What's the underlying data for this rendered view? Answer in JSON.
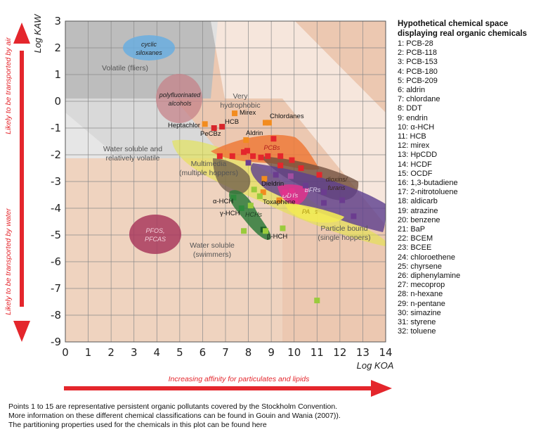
{
  "chart_data": {
    "type": "scatter",
    "title": "",
    "xlabel": "Log KOA",
    "ylabel": "Log KAW",
    "xlim": [
      0,
      14
    ],
    "ylim": [
      -9,
      3
    ],
    "xticks": [
      "0",
      "1",
      "2",
      "3",
      "4",
      "5",
      "6",
      "7",
      "8",
      "9",
      "10",
      "11",
      "12",
      "13",
      "14"
    ],
    "yticks": [
      "3",
      "2",
      "1",
      "0",
      "-1",
      "-2",
      "-3",
      "-4",
      "-5",
      "-6",
      "-7",
      "-8",
      "-9"
    ],
    "grid": true,
    "side_arrow_top": "Likely to be transported by air",
    "side_arrow_bottom": "Likely to be transported by water",
    "bottom_arrow": "Increasing affinity for particulates and lipids",
    "region_labels": {
      "volatile": "Volatile (fliers)",
      "very_hydrophobic_1": "Very",
      "very_hydrophobic_2": "hydrophobic",
      "water_soluble_volatile_1": "Water soluble and",
      "water_soluble_volatile_2": "relatively volatile",
      "multimedia_1": "Multimedia",
      "multimedia_2": "(multiple hoppers)",
      "particle_bound_1": "Particle bound",
      "particle_bound_2": "(single hoppers)",
      "water_soluble_1": "Water soluble",
      "water_soluble_2": "(swimmers)"
    },
    "blob_labels": {
      "siloxanes_1": "cyclic",
      "siloxanes_2": "siloxanes",
      "pfa_1": "polyfluorinated",
      "pfa_2": "alcohols",
      "pfos_1": "PFOS,",
      "pfos_2": "PFCAS",
      "pcbs": "PCBs",
      "dioxins_1": "dioxins/",
      "dioxins_2": "furans",
      "bfrs": "BFRs",
      "ddts": "DDTs",
      "pahs": "PAHs",
      "hchs": "HCHs"
    },
    "chemical_labels": {
      "heptachlor": "Heptachlor",
      "pecbz": "PeCBz",
      "hcb": "HCB",
      "mirex": "Mirex",
      "chlordanes": "Chlordanes",
      "aldrin": "Aldrin",
      "dieldrin": "Dieldrin",
      "toxaphene": "Toxaphene",
      "a_hch": "α-HCH",
      "g_hch": "γ-HCH",
      "b_hch": "β-HCH"
    },
    "points": [
      {
        "x": 6.1,
        "y": -0.85,
        "color": "#f28c1f"
      },
      {
        "x": 7.4,
        "y": -0.45,
        "color": "#f28c1f"
      },
      {
        "x": 8.75,
        "y": -0.8,
        "color": "#f28c1f"
      },
      {
        "x": 8.9,
        "y": -0.8,
        "color": "#f28c1f"
      },
      {
        "x": 7.9,
        "y": -1.45,
        "color": "#f28c1f"
      },
      {
        "x": 8.7,
        "y": -2.9,
        "color": "#f28c1f"
      },
      {
        "x": 8.65,
        "y": -3.4,
        "color": "#f28c1f"
      },
      {
        "x": 9.35,
        "y": -3.7,
        "color": "#f28c1f"
      },
      {
        "x": 6.5,
        "y": -1.0,
        "color": "#d7262b"
      },
      {
        "x": 6.85,
        "y": -0.95,
        "color": "#d7262b"
      },
      {
        "x": 6.75,
        "y": -2.05,
        "color": "#e4262c"
      },
      {
        "x": 7.3,
        "y": -2.05,
        "color": "#e4262c"
      },
      {
        "x": 7.8,
        "y": -1.9,
        "color": "#e4262c"
      },
      {
        "x": 7.95,
        "y": -1.85,
        "color": "#e4262c"
      },
      {
        "x": 8.2,
        "y": -2.05,
        "color": "#e4262c"
      },
      {
        "x": 8.55,
        "y": -2.1,
        "color": "#e4262c"
      },
      {
        "x": 8.85,
        "y": -2.05,
        "color": "#e4262c"
      },
      {
        "x": 9.1,
        "y": -1.4,
        "color": "#e4262c"
      },
      {
        "x": 9.4,
        "y": -2.05,
        "color": "#e4262c"
      },
      {
        "x": 9.4,
        "y": -2.4,
        "color": "#e4262c"
      },
      {
        "x": 9.9,
        "y": -2.2,
        "color": "#e4262c"
      },
      {
        "x": 10.3,
        "y": -2.5,
        "color": "#e4262c"
      },
      {
        "x": 11.1,
        "y": -2.75,
        "color": "#e4262c"
      },
      {
        "x": 8.0,
        "y": -2.3,
        "color": "#6b3c8f"
      },
      {
        "x": 9.2,
        "y": -2.75,
        "color": "#6b3c8f"
      },
      {
        "x": 10.5,
        "y": -3.15,
        "color": "#6b3c8f"
      },
      {
        "x": 11.3,
        "y": -3.4,
        "color": "#6b3c8f"
      },
      {
        "x": 11.3,
        "y": -3.8,
        "color": "#6b3c8f"
      },
      {
        "x": 12.1,
        "y": -3.7,
        "color": "#6b3c8f"
      },
      {
        "x": 12.6,
        "y": -4.3,
        "color": "#6b3c8f"
      },
      {
        "x": 9.85,
        "y": -2.8,
        "color": "#a24ea0"
      },
      {
        "x": 9.9,
        "y": -3.35,
        "color": "#e2338d"
      },
      {
        "x": 10.05,
        "y": -3.7,
        "color": "#e2338d"
      },
      {
        "x": 9.6,
        "y": -3.4,
        "color": "#e2338d"
      },
      {
        "x": 7.35,
        "y": -3.6,
        "color": "#2f8a3c"
      },
      {
        "x": 7.7,
        "y": -4.0,
        "color": "#2f8a3c"
      },
      {
        "x": 8.65,
        "y": -4.8,
        "color": "#1d5e28"
      },
      {
        "x": 8.25,
        "y": -3.3,
        "color": "#9acb3c"
      },
      {
        "x": 8.5,
        "y": -3.55,
        "color": "#9acb3c"
      },
      {
        "x": 8.1,
        "y": -3.9,
        "color": "#9acb3c"
      },
      {
        "x": 7.8,
        "y": -4.85,
        "color": "#9acb3c"
      },
      {
        "x": 8.75,
        "y": -4.85,
        "color": "#9acb3c"
      },
      {
        "x": 9.5,
        "y": -4.75,
        "color": "#9acb3c"
      },
      {
        "x": 11.0,
        "y": -7.45,
        "color": "#9acb3c"
      },
      {
        "x": 10.8,
        "y": -4.1,
        "color": "#eeea5a"
      }
    ]
  },
  "side_panel": {
    "title": "Hypothetical chemical space displaying real organic chemicals",
    "items": [
      "1: PCB-28",
      "2: PCB-118",
      "3: PCB-153",
      "4: PCB-180",
      "5: PCB-209",
      "6: aldrin",
      "7: chlordane",
      "8: DDT",
      "9: endrin",
      "10: α-HCH",
      "11: HCB",
      "12: mirex",
      "13: HpCDD",
      "14: HCDF",
      "15: OCDF",
      "16: 1,3-butadiene",
      "17: 2-nitrotoluene",
      "18: aldicarb",
      "19: atrazine",
      "20: benzene",
      "21: BaP",
      "22: BCEM",
      "23: BCEE",
      "24: chloroethene",
      "25: chyrsene",
      "26: diphenylamine",
      "27: mecoprop",
      "28: n-hexane",
      "29: n-pentane",
      "30: simazine",
      "31: styrene",
      "32: toluene"
    ]
  },
  "footnote": {
    "line1": "Points 1 to 15 are representative persistent organic pollutants covered by the Stockholm Convention.",
    "line2": "More information on these different chemical classifications can be found in Gouin and Wania (2007)).",
    "line3": "The partitioning properties used for the chemicals in this plot can be found here"
  },
  "colors": {
    "plot_background": "#d9d9d9",
    "volatile_region": "#b8b8b8",
    "hydrophobic_region": "#ecc8b1",
    "water_soluble_region": "#efd3bf",
    "arrow_red": "#e4262c"
  }
}
